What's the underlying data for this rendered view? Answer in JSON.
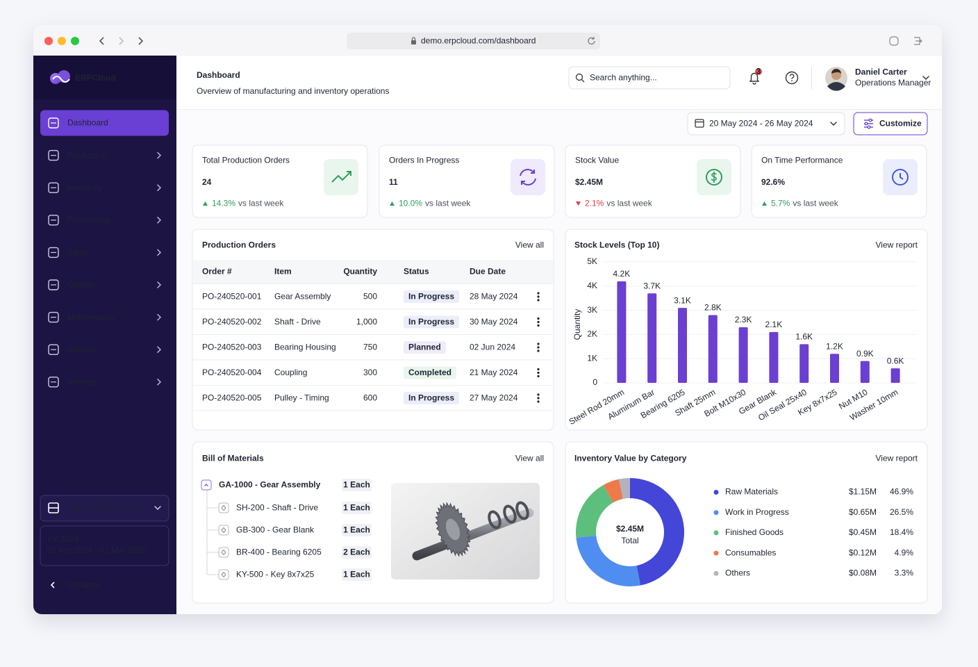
{
  "browser": {
    "url": "demo.erpcloud.com/dashboard"
  },
  "sidebar": {
    "brand": "ERPCloud",
    "nav": [
      "Dashboard",
      "Production",
      "Inventory",
      "Purchasing",
      "Sales",
      "Quality",
      "Maintenance",
      "Reports",
      "Settings"
    ],
    "active": 0,
    "company": "Precision Parts Ltd.",
    "fiscal_year": "FY 2024",
    "fiscal_period": "01 Apr 2024 - 31 Mar 2025",
    "collapse": "Collapse"
  },
  "header": {
    "title": "Dashboard",
    "subtitle": "Overview of manufacturing and inventory operations",
    "search": "Search anything...",
    "notifications": 3,
    "user": {
      "name": "Daniel Carter",
      "role": "Operations Manager"
    }
  },
  "toolbar": {
    "date_range": "20 May 2024 - 26 May 2024",
    "customize": "Customize"
  },
  "kpis": [
    {
      "label": "Total Production Orders",
      "value": "24",
      "change": "14.3%",
      "note": "vs last week",
      "trend": "up"
    },
    {
      "label": "Orders In Progress",
      "value": "11",
      "change": "10.0%",
      "note": "vs last week",
      "trend": "up"
    },
    {
      "label": "Stock Value",
      "value": "$2.45M",
      "change": "2.1%",
      "note": "vs last week",
      "trend": "down"
    },
    {
      "label": "On Time Performance",
      "value": "92.6%",
      "change": "5.7%",
      "note": "vs last week",
      "trend": "up"
    }
  ],
  "orders": {
    "title": "Production Orders",
    "link": "View all",
    "columns": [
      "Order #",
      "Item",
      "Quantity",
      "Status",
      "Due Date"
    ],
    "rows": [
      [
        "PO-240520-001",
        "Gear Assembly",
        "500",
        "In Progress",
        "28 May 2024"
      ],
      [
        "PO-240520-002",
        "Shaft - Drive",
        "1,000",
        "In Progress",
        "30 May 2024"
      ],
      [
        "PO-240520-003",
        "Bearing Housing",
        "750",
        "Planned",
        "02 Jun 2024"
      ],
      [
        "PO-240520-004",
        "Coupling",
        "300",
        "Completed",
        "21 May 2024"
      ],
      [
        "PO-240520-005",
        "Pulley - Timing",
        "600",
        "In Progress",
        "27 May 2024"
      ]
    ],
    "status_colors": [
      "#3b4fd0",
      "#3b4fd0",
      "#6a3fd4",
      "#2f9e5a",
      "#3b4fd0"
    ]
  },
  "bom": {
    "title": "Bill of Materials",
    "link": "View all",
    "root": {
      "label": "GA-1000 - Gear Assembly",
      "qty": "1 Each"
    },
    "children": [
      {
        "label": "SH-200 - Shaft - Drive",
        "qty": "1 Each"
      },
      {
        "label": "GB-300 - Gear Blank",
        "qty": "1 Each"
      },
      {
        "label": "BR-400 - Bearing 6205",
        "qty": "2 Each"
      },
      {
        "label": "KY-500 - Key 8x7x25",
        "qty": "1 Each"
      }
    ]
  },
  "chart_data": [
    {
      "type": "bar",
      "title": "Stock Levels (Top 10)",
      "link": "View report",
      "y_label": "Quantity",
      "categories": [
        "Steel Rod 20mm",
        "Aluminum Bar",
        "Bearing 6205",
        "Shaft 25mm",
        "Bolt M10x30",
        "Gear Blank",
        "Oil Seal 25x40",
        "Key 8x7x25",
        "Nut M10",
        "Washer 10mm"
      ],
      "values": [
        4200,
        3700,
        3100,
        2800,
        2300,
        2100,
        1600,
        1200,
        900,
        600
      ],
      "value_labels": [
        "4.2K",
        "3.7K",
        "3.1K",
        "2.8K",
        "2.3K",
        "2.1K",
        "1.6K",
        "1.2K",
        "0.9K",
        "0.6K"
      ],
      "color": "#6b3fd1",
      "ylim": [
        0,
        5000
      ],
      "yticks": [
        0,
        {
          "value": 1000,
          "label": "1K"
        },
        {
          "value": 2000,
          "label": "2K"
        },
        {
          "value": 3000,
          "label": "3K"
        },
        {
          "value": 4000,
          "label": "4K"
        },
        {
          "value": 5000,
          "label": "5K"
        }
      ],
      "grid": true
    },
    {
      "type": "donut",
      "title": "Inventory Value by Category",
      "link": "View report",
      "total_label": "$2.45M",
      "total_caption": "Total",
      "categories": [
        "Raw Materials",
        "Work in Progress",
        "Finished Goods",
        "Consumables",
        "Others"
      ],
      "values": [
        46.9,
        26.5,
        18.4,
        4.9,
        3.3
      ],
      "value_labels": [
        "46.9%",
        "26.5%",
        "18.4%",
        "4.9%",
        "3.3%"
      ],
      "amounts": [
        1.15,
        0.65,
        0.45,
        0.12,
        0.08
      ],
      "amount_labels": [
        "$1.15M",
        "$0.65M",
        "$0.45M",
        "$0.12M",
        "$0.08M"
      ],
      "colors": [
        "#4446d8",
        "#4f8ef0",
        "#5dbf7d",
        "#ec7a4a",
        "#b4b1c0"
      ]
    }
  ]
}
